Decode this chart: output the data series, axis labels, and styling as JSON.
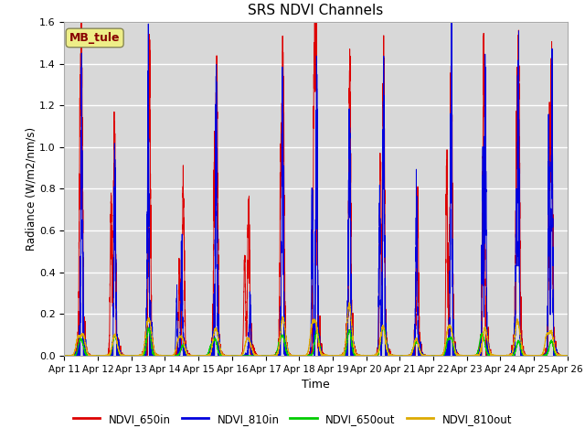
{
  "title": "SRS NDVI Channels",
  "xlabel": "Time",
  "ylabel": "Radiance (W/m2/nm/s)",
  "ylim": [
    0.0,
    1.6
  ],
  "annotation": "MB_tule",
  "legend_entries": [
    "NDVI_650in",
    "NDVI_810in",
    "NDVI_650out",
    "NDVI_810out"
  ],
  "line_colors": [
    "#dd0000",
    "#0000dd",
    "#00cc00",
    "#ddaa00"
  ],
  "x_tick_labels": [
    "Apr 11",
    "Apr 12",
    "Apr 13",
    "Apr 14",
    "Apr 15",
    "Apr 16",
    "Apr 17",
    "Apr 18",
    "Apr 19",
    "Apr 20",
    "Apr 21",
    "Apr 22",
    "Apr 23",
    "Apr 24",
    "Apr 25",
    "Apr 26"
  ],
  "bg_color": "#d8d8d8",
  "plot_bg_color": "#d8d8d8",
  "yticks": [
    0.0,
    0.2,
    0.4,
    0.6,
    0.8,
    1.0,
    1.2,
    1.4,
    1.6
  ]
}
